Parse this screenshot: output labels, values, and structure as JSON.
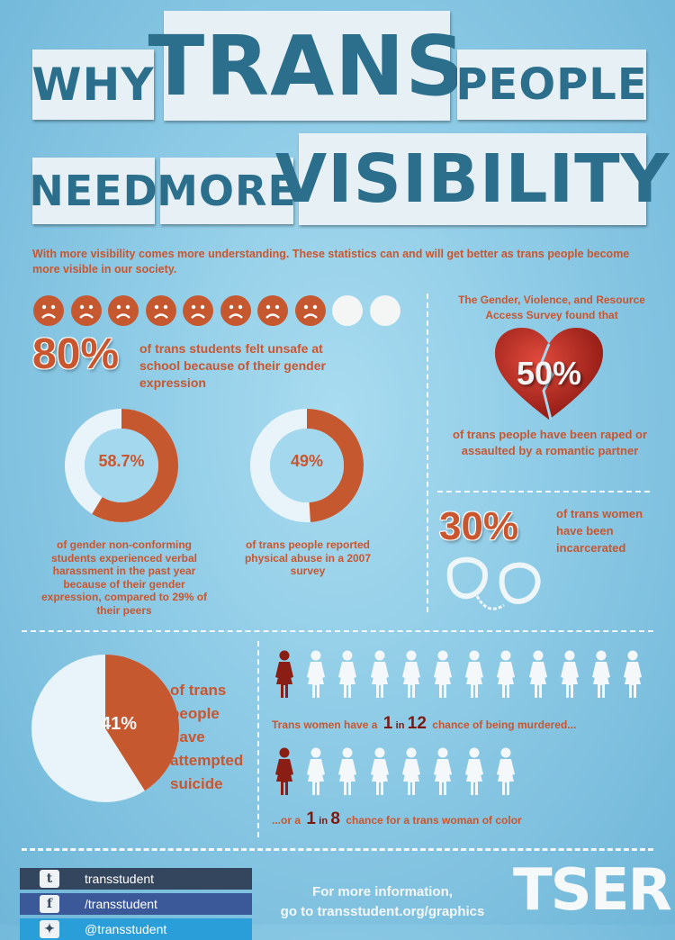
{
  "title": {
    "w1": "WHY",
    "w2": "TRANS",
    "w3": "PEOPLE",
    "w4": "NEED",
    "w5": "MORE",
    "w6": "VISIBILITY"
  },
  "subtitle": "With more visibility comes more understanding. These statistics can and will get better  as trans people become more visible in our society.",
  "faces": {
    "sad_count": 8,
    "total": 10
  },
  "stat80": {
    "value": "80%",
    "text": "of trans students felt unsafe at school because of their gender expression"
  },
  "survey": {
    "intro": "The Gender, Violence, and Resource Access Survey found that",
    "value": "50%",
    "text": "of trans people have been raped or assaulted by a romantic partner"
  },
  "donut1": {
    "value": "58.7%",
    "fraction": 0.587,
    "text": "of gender  non-conforming students  experienced  verbal harassment in the past year because of their gender expression, compared to 29% of their peers"
  },
  "donut2": {
    "value": "49%",
    "fraction": 0.49,
    "text": "of trans people reported physical abuse in a 2007 survey"
  },
  "stat30": {
    "value": "30%",
    "text": "of trans women have been incarcerated"
  },
  "pie": {
    "value": "41%",
    "fraction": 0.41,
    "text": "of trans people have attempted suicide"
  },
  "murder1": {
    "pre": "Trans women have a",
    "num": "1",
    "in": "in",
    "den": "12",
    "post": "chance of being murdered...",
    "total": 12
  },
  "murder2": {
    "pre": "...or a",
    "num": "1",
    "in": "in",
    "den": "8",
    "post": "chance for a trans woman of color",
    "total": 8
  },
  "footer": {
    "tumblr": "transstudent",
    "facebook": "/transstudent",
    "twitter": "@transstudent",
    "info1": "For more information,",
    "info2": "go to transstudent.org/graphics",
    "logo": "TSER"
  },
  "colors": {
    "accent": "#c9562f",
    "dark_red": "#7a1a12",
    "title_blue": "#2c6f8c"
  }
}
